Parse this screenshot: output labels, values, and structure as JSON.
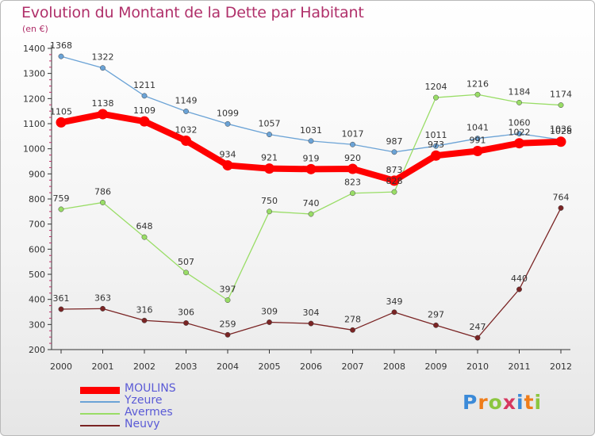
{
  "header": {
    "title": "Evolution du Montant de la Dette par Habitant",
    "unit": "(en €)"
  },
  "logo": {
    "text": "Proxiti",
    "colors": [
      "#3b8ad8",
      "#ef7d1a",
      "#8cc63f",
      "#d6375f",
      "#3b8ad8",
      "#ef7d1a",
      "#8cc63f"
    ]
  },
  "chart_data": {
    "type": "line",
    "x": [
      "2000",
      "2001",
      "2002",
      "2003",
      "2004",
      "2005",
      "2006",
      "2007",
      "2008",
      "2009",
      "2010",
      "2011",
      "2012"
    ],
    "ylim": [
      200,
      1400
    ],
    "yticks": [
      200,
      300,
      400,
      500,
      600,
      700,
      800,
      900,
      1000,
      1100,
      1200,
      1300,
      1400
    ],
    "grid": false,
    "legend_position": "bottom-left",
    "series": [
      {
        "name": "MOULINS",
        "color": "#ff0000",
        "values": [
          1105,
          1138,
          1109,
          1032,
          934,
          921,
          919,
          920,
          873,
          973,
          991,
          1022,
          1028
        ]
      },
      {
        "name": "Yzeure",
        "color": "#6ba3d6",
        "values": [
          1368,
          1322,
          1211,
          1149,
          1099,
          1057,
          1031,
          1017,
          987,
          1011,
          1041,
          1060,
          1036
        ]
      },
      {
        "name": "Avermes",
        "color": "#99dd66",
        "values": [
          759,
          786,
          648,
          507,
          397,
          750,
          740,
          823,
          828,
          1204,
          1216,
          1184,
          1174
        ]
      },
      {
        "name": "Neuvy",
        "color": "#7a2424",
        "values": [
          361,
          363,
          316,
          306,
          259,
          309,
          304,
          278,
          349,
          297,
          247,
          440,
          764
        ]
      }
    ]
  }
}
